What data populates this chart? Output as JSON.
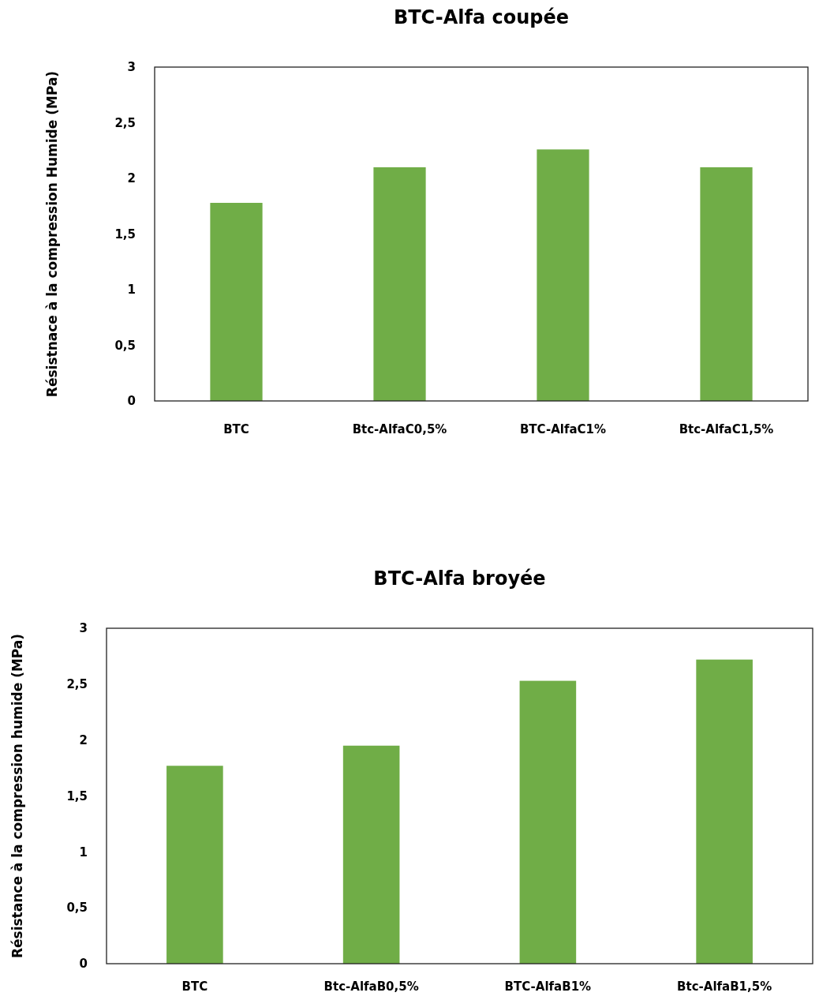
{
  "chart_data": [
    {
      "type": "bar",
      "title": "BTC-Alfa coupée",
      "ylabel": "Résistnace à la compression Humide (MPa)",
      "categories": [
        "BTC",
        "Btc-AlfaC0,5%",
        "BTC-AlfaC1%",
        "Btc-AlfaC1,5%"
      ],
      "values": [
        1.78,
        2.1,
        2.26,
        2.1
      ],
      "color": "#70ad47",
      "ylim": [
        0,
        3
      ],
      "yticks": [
        0,
        {
          "value": 0.5,
          "label": "0,5"
        },
        1,
        {
          "value": 1.5,
          "label": "1,5"
        },
        2,
        {
          "value": 2.5,
          "label": "2,5"
        },
        3
      ],
      "grid": false
    },
    {
      "type": "bar",
      "title": "BTC-Alfa broyée",
      "ylabel": "Résistance à la compression humide (MPa)",
      "categories": [
        "BTC",
        "Btc-AlfaB0,5%",
        "BTC-AlfaB1%",
        "Btc-AlfaB1,5%"
      ],
      "values": [
        1.77,
        1.95,
        2.53,
        2.72
      ],
      "color": "#70ad47",
      "ylim": [
        0,
        3
      ],
      "yticks": [
        0,
        {
          "value": 0.5,
          "label": "0,5"
        },
        1,
        {
          "value": 1.5,
          "label": "1,5"
        },
        2,
        {
          "value": 2.5,
          "label": "2,5"
        },
        3
      ],
      "grid": false
    }
  ]
}
